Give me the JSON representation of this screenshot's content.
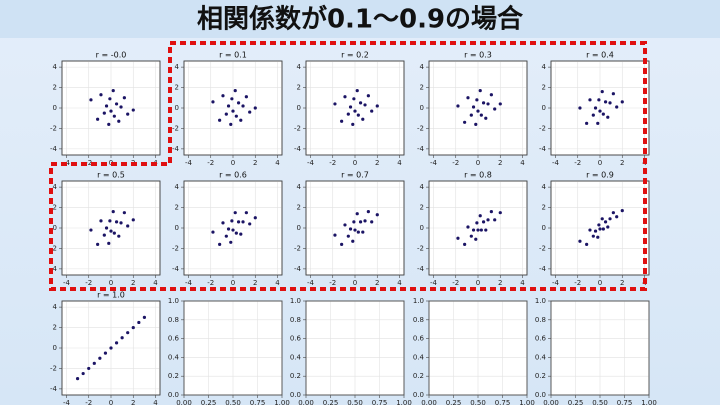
{
  "slide_title": "相関係数が0.1〜0.9の場合",
  "chart_data": [
    {
      "type": "scatter",
      "title": "r = -0.0",
      "color": "#1b1464",
      "grid": true,
      "xlim": [
        -4.4,
        4.4
      ],
      "ylim": [
        -4.6,
        4.6
      ],
      "xticks": [
        -4,
        -2,
        0,
        2,
        4
      ],
      "yticks": [
        -4,
        -2,
        0,
        2,
        4
      ],
      "x": [
        -1.8,
        -1.2,
        -0.9,
        -0.6,
        -0.4,
        -0.2,
        -0.1,
        0.0,
        0.2,
        0.3,
        0.5,
        0.7,
        0.9,
        1.2,
        1.5,
        2.0
      ],
      "y": [
        0.8,
        -1.1,
        1.3,
        -0.5,
        0.2,
        -1.6,
        0.9,
        -0.3,
        1.7,
        -0.8,
        0.4,
        -1.3,
        0.1,
        1.0,
        -0.6,
        -0.2
      ]
    },
    {
      "type": "scatter",
      "title": "r = 0.1",
      "color": "#1b1464",
      "grid": true,
      "xlim": [
        -4.4,
        4.4
      ],
      "ylim": [
        -4.6,
        4.6
      ],
      "xticks": [
        -4,
        -2,
        0,
        2,
        4
      ],
      "yticks": [
        -4,
        -2,
        0,
        2,
        4
      ],
      "x": [
        -1.8,
        -1.2,
        -0.9,
        -0.6,
        -0.4,
        -0.2,
        -0.1,
        0.0,
        0.2,
        0.3,
        0.5,
        0.7,
        0.9,
        1.2,
        1.5,
        2.0
      ],
      "y": [
        0.6,
        -1.2,
        1.2,
        -0.6,
        0.2,
        -1.6,
        0.9,
        -0.3,
        1.7,
        -0.8,
        0.5,
        -1.2,
        0.2,
        1.1,
        -0.4,
        0.0
      ]
    },
    {
      "type": "scatter",
      "title": "r = 0.2",
      "color": "#1b1464",
      "grid": true,
      "xlim": [
        -4.4,
        4.4
      ],
      "ylim": [
        -4.6,
        4.6
      ],
      "xticks": [
        -4,
        -2,
        0,
        2,
        4
      ],
      "yticks": [
        -4,
        -2,
        0,
        2,
        4
      ],
      "x": [
        -1.8,
        -1.2,
        -0.9,
        -0.6,
        -0.4,
        -0.2,
        -0.1,
        0.0,
        0.2,
        0.3,
        0.5,
        0.7,
        0.9,
        1.2,
        1.5,
        2.0
      ],
      "y": [
        0.4,
        -1.3,
        1.1,
        -0.6,
        0.1,
        -1.6,
        0.9,
        -0.3,
        1.7,
        -0.7,
        0.5,
        -1.1,
        0.3,
        1.2,
        -0.3,
        0.2
      ]
    },
    {
      "type": "scatter",
      "title": "r = 0.3",
      "color": "#1b1464",
      "grid": true,
      "xlim": [
        -4.4,
        4.4
      ],
      "ylim": [
        -4.6,
        4.6
      ],
      "xticks": [
        -4,
        -2,
        0,
        2,
        4
      ],
      "yticks": [
        -4,
        -2,
        0,
        2,
        4
      ],
      "x": [
        -1.8,
        -1.2,
        -0.9,
        -0.6,
        -0.4,
        -0.2,
        -0.1,
        0.0,
        0.2,
        0.3,
        0.5,
        0.7,
        0.9,
        1.2,
        1.5,
        2.0
      ],
      "y": [
        0.2,
        -1.4,
        1.0,
        -0.7,
        0.1,
        -1.6,
        0.8,
        -0.3,
        1.7,
        -0.7,
        0.5,
        -1.0,
        0.4,
        1.3,
        -0.1,
        0.4
      ]
    },
    {
      "type": "scatter",
      "title": "r = 0.4",
      "color": "#1b1464",
      "grid": true,
      "xlim": [
        -4.4,
        4.4
      ],
      "ylim": [
        -4.6,
        4.6
      ],
      "xticks": [
        -4,
        -2,
        0,
        2,
        4
      ],
      "yticks": [
        -4,
        -2,
        0,
        2,
        4
      ],
      "x": [
        -1.8,
        -1.2,
        -0.9,
        -0.6,
        -0.4,
        -0.2,
        -0.1,
        0.0,
        0.2,
        0.3,
        0.5,
        0.7,
        0.9,
        1.2,
        1.5,
        2.0
      ],
      "y": [
        0.0,
        -1.5,
        0.8,
        -0.7,
        0.0,
        -1.5,
        0.8,
        -0.3,
        1.6,
        -0.6,
        0.6,
        -0.9,
        0.5,
        1.4,
        0.1,
        0.6
      ]
    },
    {
      "type": "scatter",
      "title": "r = 0.5",
      "color": "#1b1464",
      "grid": true,
      "xlim": [
        -4.4,
        4.4
      ],
      "ylim": [
        -4.6,
        4.6
      ],
      "xticks": [
        -4,
        -2,
        0,
        2,
        4
      ],
      "yticks": [
        -4,
        -2,
        0,
        2,
        4
      ],
      "x": [
        -1.8,
        -1.2,
        -0.9,
        -0.6,
        -0.4,
        -0.2,
        -0.1,
        0.0,
        0.2,
        0.3,
        0.5,
        0.7,
        0.9,
        1.2,
        1.5,
        2.0
      ],
      "y": [
        -0.2,
        -1.6,
        0.7,
        -0.7,
        0.0,
        -1.5,
        0.7,
        -0.3,
        1.6,
        -0.5,
        0.6,
        -0.8,
        0.5,
        1.5,
        0.2,
        0.8
      ]
    },
    {
      "type": "scatter",
      "title": "r = 0.6",
      "color": "#1b1464",
      "grid": true,
      "xlim": [
        -4.4,
        4.4
      ],
      "ylim": [
        -4.6,
        4.6
      ],
      "xticks": [
        -4,
        -2,
        0,
        2,
        4
      ],
      "yticks": [
        -4,
        -2,
        0,
        2,
        4
      ],
      "x": [
        -1.8,
        -1.2,
        -0.9,
        -0.6,
        -0.4,
        -0.2,
        -0.1,
        0.0,
        0.2,
        0.3,
        0.5,
        0.7,
        0.9,
        1.2,
        1.5,
        2.0
      ],
      "y": [
        -0.4,
        -1.6,
        0.5,
        -0.8,
        -0.1,
        -1.4,
        0.7,
        -0.2,
        1.5,
        -0.5,
        0.6,
        -0.6,
        0.6,
        1.5,
        0.4,
        1.0
      ]
    },
    {
      "type": "scatter",
      "title": "r = 0.7",
      "color": "#1b1464",
      "grid": true,
      "xlim": [
        -4.4,
        4.4
      ],
      "ylim": [
        -4.6,
        4.6
      ],
      "xticks": [
        -4,
        -2,
        0,
        2,
        4
      ],
      "yticks": [
        -4,
        -2,
        0,
        2,
        4
      ],
      "x": [
        -1.8,
        -1.2,
        -0.9,
        -0.6,
        -0.4,
        -0.2,
        -0.1,
        0.0,
        0.2,
        0.3,
        0.5,
        0.7,
        0.9,
        1.2,
        1.5,
        2.0
      ],
      "y": [
        -0.7,
        -1.6,
        0.3,
        -0.8,
        -0.1,
        -1.3,
        0.6,
        -0.2,
        1.4,
        -0.4,
        0.6,
        -0.4,
        0.7,
        1.6,
        0.6,
        1.3
      ]
    },
    {
      "type": "scatter",
      "title": "r = 0.8",
      "color": "#1b1464",
      "grid": true,
      "xlim": [
        -4.4,
        4.4
      ],
      "ylim": [
        -4.6,
        4.6
      ],
      "xticks": [
        -4,
        -2,
        0,
        2,
        4
      ],
      "yticks": [
        -4,
        -2,
        0,
        2,
        4
      ],
      "x": [
        -1.8,
        -1.2,
        -0.9,
        -0.6,
        -0.4,
        -0.2,
        -0.1,
        0.0,
        0.2,
        0.3,
        0.5,
        0.7,
        0.9,
        1.2,
        1.5,
        2.0
      ],
      "y": [
        -1.0,
        -1.6,
        0.1,
        -0.8,
        -0.2,
        -1.1,
        0.5,
        -0.2,
        1.2,
        -0.2,
        0.6,
        -0.2,
        0.8,
        1.6,
        0.8,
        1.5
      ]
    },
    {
      "type": "scatter",
      "title": "r = 0.9",
      "color": "#1b1464",
      "grid": true,
      "xlim": [
        -4.4,
        4.4
      ],
      "ylim": [
        -4.6,
        4.6
      ],
      "xticks": [
        -4,
        -2,
        0,
        2,
        4
      ],
      "yticks": [
        -4,
        -2,
        0,
        2,
        4
      ],
      "x": [
        -1.8,
        -1.2,
        -0.9,
        -0.6,
        -0.4,
        -0.2,
        -0.1,
        0.0,
        0.2,
        0.3,
        0.5,
        0.7,
        0.9,
        1.2,
        1.5,
        2.0
      ],
      "y": [
        -1.3,
        -1.6,
        -0.2,
        -0.8,
        -0.3,
        -0.9,
        0.3,
        -0.1,
        0.9,
        -0.1,
        0.6,
        0.1,
        0.9,
        1.5,
        1.1,
        1.7
      ]
    },
    {
      "type": "scatter",
      "title": "r = 1.0",
      "color": "#1b1464",
      "grid": true,
      "xlim": [
        -4.4,
        4.4
      ],
      "ylim": [
        -4.6,
        4.6
      ],
      "xticks": [
        -4,
        -2,
        0,
        2,
        4
      ],
      "yticks": [
        -4,
        -2,
        0,
        2,
        4
      ],
      "x": [
        -3.0,
        -2.5,
        -2.0,
        -1.5,
        -1.0,
        -0.5,
        0.0,
        0.5,
        1.0,
        1.5,
        2.0,
        2.5,
        3.0
      ],
      "y": [
        -3.0,
        -2.5,
        -2.0,
        -1.5,
        -1.0,
        -0.5,
        0.0,
        0.5,
        1.0,
        1.5,
        2.0,
        2.5,
        3.0
      ]
    },
    {
      "type": "scatter",
      "color": "#1b1464",
      "grid": true,
      "xlim": [
        0,
        1
      ],
      "ylim": [
        0,
        1
      ],
      "x": [],
      "y": [],
      "xticks": [
        {
          "value": 0,
          "label": "0.00"
        },
        0.25,
        {
          "value": 0.5,
          "label": "0.50"
        },
        0.75,
        {
          "value": 1,
          "label": "1.00"
        }
      ],
      "yticks": [
        {
          "value": 0,
          "label": "0.0"
        },
        0.2,
        0.4,
        0.6,
        0.8,
        {
          "value": 1,
          "label": "1.0"
        }
      ]
    },
    {
      "type": "scatter",
      "color": "#1b1464",
      "grid": true,
      "xlim": [
        0,
        1
      ],
      "ylim": [
        0,
        1
      ],
      "x": [],
      "y": [],
      "xticks": [
        {
          "value": 0,
          "label": "0.00"
        },
        0.25,
        {
          "value": 0.5,
          "label": "0.50"
        },
        0.75,
        {
          "value": 1,
          "label": "1.00"
        }
      ],
      "yticks": [
        {
          "value": 0,
          "label": "0.0"
        },
        0.2,
        0.4,
        0.6,
        0.8,
        {
          "value": 1,
          "label": "1.0"
        }
      ]
    },
    {
      "type": "scatter",
      "color": "#1b1464",
      "grid": true,
      "xlim": [
        0,
        1
      ],
      "ylim": [
        0,
        1
      ],
      "x": [],
      "y": [],
      "xticks": [
        {
          "value": 0,
          "label": "0.00"
        },
        0.25,
        {
          "value": 0.5,
          "label": "0.50"
        },
        0.75,
        {
          "value": 1,
          "label": "1.00"
        }
      ],
      "yticks": [
        {
          "value": 0,
          "label": "0.0"
        },
        0.2,
        0.4,
        0.6,
        0.8,
        {
          "value": 1,
          "label": "1.0"
        }
      ]
    },
    {
      "type": "scatter",
      "color": "#1b1464",
      "grid": true,
      "xlim": [
        0,
        1
      ],
      "ylim": [
        0,
        1
      ],
      "x": [],
      "y": [],
      "xticks": [
        {
          "value": 0,
          "label": "0.00"
        },
        0.25,
        {
          "value": 0.5,
          "label": "0.50"
        },
        0.75,
        {
          "value": 1,
          "label": "1.00"
        }
      ],
      "yticks": [
        {
          "value": 0,
          "label": "0.0"
        },
        0.2,
        0.4,
        0.6,
        0.8,
        {
          "value": 1,
          "label": "1.0"
        }
      ]
    }
  ]
}
